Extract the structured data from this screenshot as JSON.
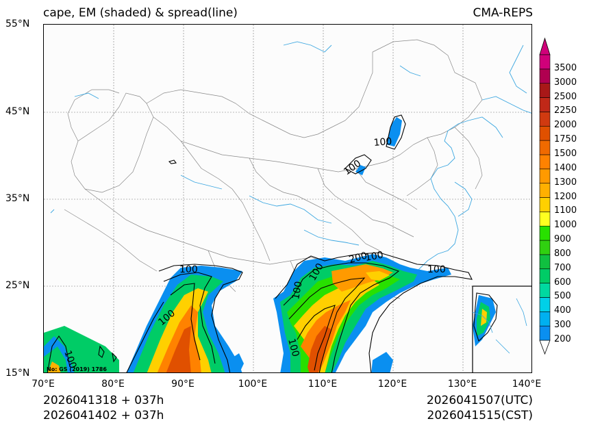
{
  "header": {
    "title_left": "cape, EM (shaded) & spread(line)",
    "title_right": "CMA-REPS"
  },
  "axes": {
    "lat_labels": [
      "55°N",
      "45°N",
      "35°N",
      "25°N",
      "15°N"
    ],
    "lon_labels": [
      "70°E",
      "80°E",
      "90°E",
      "100°E",
      "110°E",
      "120°E",
      "130°E",
      "140°E"
    ]
  },
  "colorbar": {
    "levels": [
      "200",
      "300",
      "400",
      "500",
      "600",
      "700",
      "800",
      "900",
      "1000",
      "1100",
      "1200",
      "1300",
      "1400",
      "1500",
      "1750",
      "2000",
      "2250",
      "2500",
      "3000",
      "3500"
    ],
    "colors": [
      "#0a8ff0",
      "#00b0f0",
      "#00d0e8",
      "#00d9a0",
      "#00cc66",
      "#10c040",
      "#30d010",
      "#28e000",
      "#ffff20",
      "#ffd000",
      "#ffb000",
      "#ff9a00",
      "#ff8200",
      "#f06a00",
      "#e05000",
      "#d03a10",
      "#c02818",
      "#a81818",
      "#b00050",
      "#d0007a"
    ],
    "top_arrow_color": "#d0007a"
  },
  "contour_labels": [
    "100",
    "100",
    "100",
    "100",
    "100",
    "200",
    "100",
    "100",
    "100",
    "100",
    "100"
  ],
  "watermark": "No: GS (2019) 1786",
  "footer": {
    "left_line1": "2026041318  +  037h",
    "left_line2": "2026041402  +  037h",
    "right_line1": "2026041507(UTC)",
    "right_line2": "2026041515(CST)"
  }
}
